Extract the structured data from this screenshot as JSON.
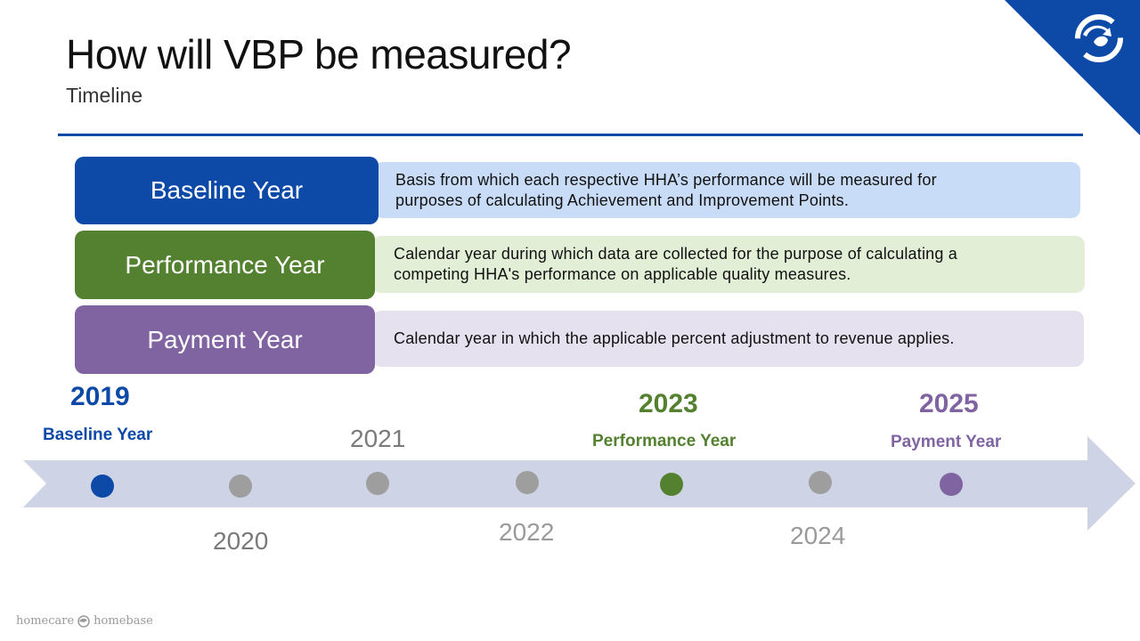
{
  "slide": {
    "title": "How will VBP be measured?",
    "subtitle": "Timeline"
  },
  "definitions": [
    {
      "label": "Baseline Year",
      "description": "Basis from which each respective HHA’s performance will be measured for purposes of calculating Achievement and Improvement Points.",
      "color": "#0d4aa8",
      "desc_bg": "#c9dcf7"
    },
    {
      "label": "Performance Year",
      "description": "Calendar year during which data are collected for the purpose of calculating a competing HHA's performance on applicable quality measures.",
      "color": "#548130",
      "desc_bg": "#e2efd6"
    },
    {
      "label": "Payment Year",
      "description": "Calendar year in which the applicable percent adjustment to revenue applies.",
      "color": "#8064a2",
      "desc_bg": "#e6e1ef"
    }
  ],
  "timeline": {
    "arrow_color": "#ced4e6",
    "points": [
      {
        "year": "2019",
        "label": "Baseline Year",
        "color": "#0d4aa8"
      },
      {
        "year": "2020",
        "label": "",
        "color": "#9e9e9e"
      },
      {
        "year": "2021",
        "label": "",
        "color": "#9e9e9e"
      },
      {
        "year": "2022",
        "label": "",
        "color": "#9e9e9e"
      },
      {
        "year": "2023",
        "label": "Performance Year",
        "color": "#548130"
      },
      {
        "year": "2024",
        "label": "",
        "color": "#9e9e9e"
      },
      {
        "year": "2025",
        "label": "Payment Year",
        "color": "#8064a2"
      }
    ]
  },
  "footer": {
    "brand_left": "homecare",
    "brand_right": "homebase"
  }
}
